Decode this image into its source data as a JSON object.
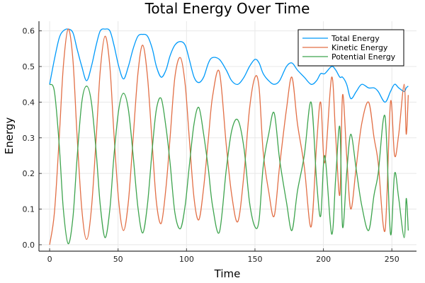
{
  "chart_data": {
    "type": "line",
    "title": "Total Energy Over Time",
    "xlabel": "Time",
    "ylabel": "Energy",
    "xlim": [
      -7.8,
      268
    ],
    "ylim": [
      -0.018,
      0.627
    ],
    "xticks": [
      0,
      50,
      100,
      150,
      200,
      250
    ],
    "xtick_labels": [
      "0",
      "50",
      "100",
      "150",
      "200",
      "250"
    ],
    "yticks": [
      0.0,
      0.1,
      0.2,
      0.3,
      0.4,
      0.5,
      0.6
    ],
    "ytick_labels": [
      "0.0",
      "0.1",
      "0.2",
      "0.3",
      "0.4",
      "0.5",
      "0.6"
    ],
    "grid": true,
    "legend_position": "top-right",
    "x": [
      0,
      3.5,
      7,
      10,
      13.5,
      17,
      20,
      23.5,
      27,
      30.5,
      34,
      37,
      40.5,
      44,
      47,
      50.5,
      54,
      57.5,
      61,
      64.5,
      68,
      71.5,
      75,
      78,
      81.5,
      85,
      88,
      91.5,
      95.5,
      99,
      102,
      105.5,
      109,
      112.5,
      116,
      119,
      124,
      129,
      133,
      137.5,
      142,
      146,
      150,
      153,
      156,
      160,
      164,
      168,
      173,
      177,
      181,
      186,
      191,
      195,
      198,
      201,
      206,
      209,
      212,
      214,
      217,
      220,
      224,
      228,
      233,
      237,
      240,
      245,
      249,
      252,
      255,
      259,
      260.5,
      262
    ],
    "series": [
      {
        "name": "Total Energy",
        "color": "#009AFA",
        "values": [
          0.45,
          0.52,
          0.58,
          0.6,
          0.605,
          0.595,
          0.55,
          0.5,
          0.46,
          0.5,
          0.56,
          0.6,
          0.605,
          0.6,
          0.56,
          0.5,
          0.465,
          0.5,
          0.55,
          0.585,
          0.59,
          0.585,
          0.55,
          0.5,
          0.47,
          0.49,
          0.53,
          0.56,
          0.57,
          0.56,
          0.52,
          0.47,
          0.455,
          0.47,
          0.51,
          0.525,
          0.52,
          0.49,
          0.46,
          0.45,
          0.47,
          0.5,
          0.52,
          0.51,
          0.48,
          0.46,
          0.45,
          0.46,
          0.5,
          0.51,
          0.49,
          0.47,
          0.45,
          0.46,
          0.48,
          0.48,
          0.5,
          0.49,
          0.47,
          0.47,
          0.45,
          0.41,
          0.43,
          0.45,
          0.44,
          0.44,
          0.43,
          0.4,
          0.43,
          0.45,
          0.44,
          0.43,
          0.44,
          0.445
        ]
      },
      {
        "name": "Kinetic Energy",
        "color": "#E26F46",
        "values": [
          0,
          0.09,
          0.3,
          0.5,
          0.605,
          0.52,
          0.31,
          0.1,
          0.015,
          0.1,
          0.3,
          0.49,
          0.585,
          0.5,
          0.31,
          0.12,
          0.04,
          0.12,
          0.3,
          0.48,
          0.56,
          0.47,
          0.28,
          0.12,
          0.06,
          0.16,
          0.3,
          0.47,
          0.525,
          0.45,
          0.3,
          0.13,
          0.07,
          0.16,
          0.3,
          0.415,
          0.485,
          0.28,
          0.14,
          0.065,
          0.2,
          0.38,
          0.47,
          0.44,
          0.26,
          0.15,
          0.08,
          0.22,
          0.38,
          0.47,
          0.34,
          0.22,
          0.05,
          0.28,
          0.4,
          0.23,
          0.47,
          0.3,
          0.14,
          0.42,
          0.25,
          0.1,
          0.22,
          0.34,
          0.4,
          0.3,
          0.23,
          0.04,
          0.4,
          0.25,
          0.31,
          0.45,
          0.31,
          0.42
        ]
      },
      {
        "name": "Potential Energy",
        "color": "#3EA44E",
        "values": [
          0.45,
          0.43,
          0.28,
          0.1,
          0.003,
          0.075,
          0.24,
          0.4,
          0.445,
          0.4,
          0.26,
          0.11,
          0.02,
          0.1,
          0.25,
          0.38,
          0.425,
          0.38,
          0.25,
          0.105,
          0.033,
          0.115,
          0.27,
          0.38,
          0.41,
          0.33,
          0.23,
          0.09,
          0.045,
          0.11,
          0.22,
          0.34,
          0.385,
          0.31,
          0.21,
          0.11,
          0.035,
          0.21,
          0.32,
          0.35,
          0.27,
          0.12,
          0.05,
          0.07,
          0.22,
          0.31,
          0.37,
          0.24,
          0.12,
          0.04,
          0.15,
          0.25,
          0.4,
          0.18,
          0.08,
          0.25,
          0.03,
          0.19,
          0.33,
          0.05,
          0.2,
          0.31,
          0.21,
          0.11,
          0.04,
          0.14,
          0.2,
          0.36,
          0.03,
          0.2,
          0.13,
          0.02,
          0.13,
          0.04
        ]
      }
    ]
  }
}
